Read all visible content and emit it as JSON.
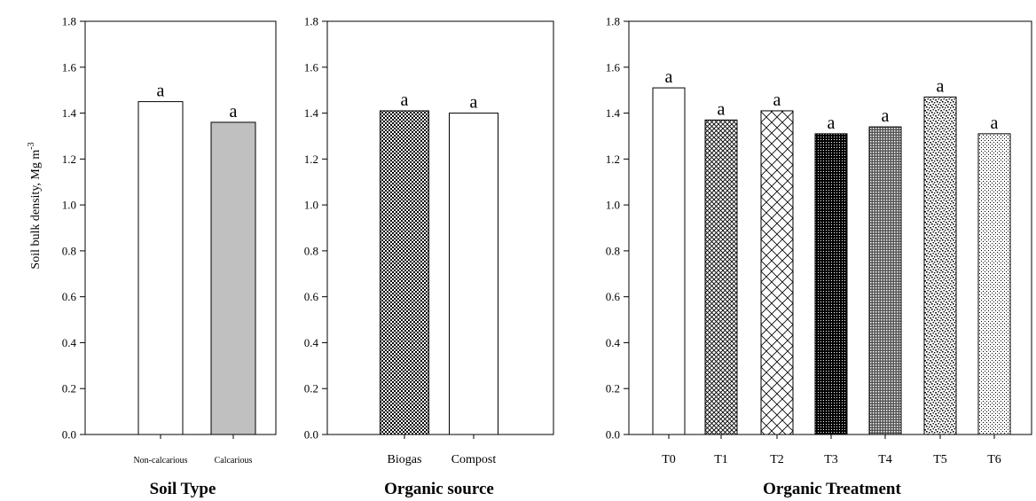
{
  "figure": {
    "ylabel": "Soil bulk density, Mg m",
    "ylabel_superscript": "-3"
  },
  "chart_data": [
    {
      "type": "bar",
      "title": "Soil Type",
      "categories": [
        "Non-calcarious",
        "Calcarious"
      ],
      "values": [
        1.45,
        1.36
      ],
      "letters": [
        "a",
        "a"
      ],
      "fills": [
        "solid-white",
        "solid-gray"
      ],
      "ylim": [
        0,
        1.8
      ],
      "yticks": [
        "0.0",
        "0.2",
        "0.4",
        "0.6",
        "0.8",
        "1.0",
        "1.2",
        "1.4",
        "1.6",
        "1.8"
      ]
    },
    {
      "type": "bar",
      "title": "Organic source",
      "categories": [
        "Biogas",
        "Compost"
      ],
      "values": [
        1.41,
        1.4
      ],
      "letters": [
        "a",
        "a"
      ],
      "fills": [
        "checker",
        "solid-white"
      ],
      "ylim": [
        0,
        1.8
      ],
      "yticks": [
        "0.0",
        "0.2",
        "0.4",
        "0.6",
        "0.8",
        "1.0",
        "1.2",
        "1.4",
        "1.6",
        "1.8"
      ]
    },
    {
      "type": "bar",
      "title": "Organic Treatment",
      "categories": [
        "T0",
        "T1",
        "T2",
        "T3",
        "T4",
        "T5",
        "T6"
      ],
      "values": [
        1.51,
        1.37,
        1.41,
        1.31,
        1.34,
        1.47,
        1.31
      ],
      "letters": [
        "a",
        "a",
        "a",
        "a",
        "a",
        "a",
        "a"
      ],
      "fills": [
        "solid-white",
        "crosshatch-fine",
        "crosshatch-wide",
        "dense-dots",
        "grid",
        "speckle",
        "sparse-dots"
      ],
      "ylim": [
        0,
        1.8
      ],
      "yticks": [
        "0.0",
        "0.2",
        "0.4",
        "0.6",
        "0.8",
        "1.0",
        "1.2",
        "1.4",
        "1.6",
        "1.8"
      ]
    }
  ]
}
